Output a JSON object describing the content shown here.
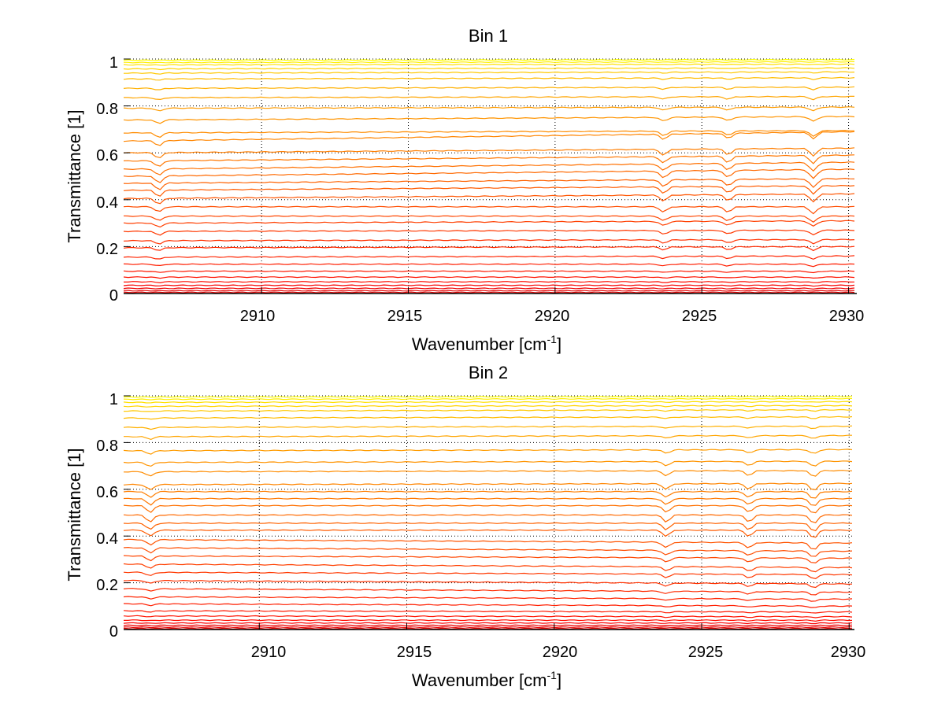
{
  "chart_data": [
    {
      "type": "line",
      "title": "Bin 1",
      "xlabel": "Wavenumber [cm",
      "xlabel_sup": "-1",
      "xlabel_end": "]",
      "ylabel": "Transmittance [1]",
      "xlim": [
        2905.3,
        2930.2
      ],
      "ylim": [
        0,
        1
      ],
      "xticks": [
        2910,
        2915,
        2920,
        2925,
        2930
      ],
      "xtick_labels": [
        "2910",
        "2915",
        "2920",
        "2925",
        "2930"
      ],
      "yticks": [
        0,
        0.2,
        0.4,
        0.6,
        0.8,
        1
      ],
      "ytick_labels": [
        "0",
        "0.2",
        "0.4",
        "0.6",
        "0.8",
        "1"
      ],
      "grid": "dotted",
      "absorption_lines_cm1": [
        2906.5,
        2923.7,
        2925.9,
        2928.8
      ],
      "series": [
        {
          "color": "#ffff00",
          "values": [
            0.995,
            0.997
          ]
        },
        {
          "color": "#ffef00",
          "values": [
            0.985,
            0.988
          ]
        },
        {
          "color": "#ffe000",
          "values": [
            0.975,
            0.978
          ]
        },
        {
          "color": "#ffd400",
          "values": [
            0.958,
            0.962
          ]
        },
        {
          "color": "#ffc800",
          "values": [
            0.94,
            0.945
          ]
        },
        {
          "color": "#ffbc00",
          "values": [
            0.915,
            0.92
          ]
        },
        {
          "color": "#ffb000",
          "values": [
            0.875,
            0.88
          ]
        },
        {
          "color": "#ffa500",
          "values": [
            0.835,
            0.84
          ]
        },
        {
          "color": "#ff9c00",
          "values": [
            0.79,
            0.795
          ]
        },
        {
          "color": "#ff9400",
          "values": [
            0.74,
            0.755
          ]
        },
        {
          "color": "#ff8c00",
          "values": [
            0.685,
            0.695
          ]
        },
        {
          "color": "#ff8500",
          "values": [
            0.65,
            0.69
          ]
        },
        {
          "color": "#ff7e00",
          "values": [
            0.6,
            0.62
          ]
        },
        {
          "color": "#ff7700",
          "values": [
            0.565,
            0.59
          ]
        },
        {
          "color": "#ff7000",
          "values": [
            0.53,
            0.56
          ]
        },
        {
          "color": "#ff6900",
          "values": [
            0.5,
            0.53
          ]
        },
        {
          "color": "#ff6200",
          "values": [
            0.47,
            0.49
          ]
        },
        {
          "color": "#ff5b00",
          "values": [
            0.44,
            0.46
          ]
        },
        {
          "color": "#ff5400",
          "values": [
            0.405,
            0.425
          ]
        },
        {
          "color": "#ff4d00",
          "values": [
            0.37,
            0.37
          ]
        },
        {
          "color": "#ff4600",
          "values": [
            0.33,
            0.33
          ]
        },
        {
          "color": "#ff3f00",
          "values": [
            0.3,
            0.31
          ]
        },
        {
          "color": "#ff3800",
          "values": [
            0.265,
            0.27
          ]
        },
        {
          "color": "#ff3100",
          "values": [
            0.225,
            0.23
          ]
        },
        {
          "color": "#ff2a00",
          "values": [
            0.195,
            0.2
          ]
        },
        {
          "color": "#ff2400",
          "values": [
            0.155,
            0.16
          ]
        },
        {
          "color": "#ff1e00",
          "values": [
            0.125,
            0.125
          ]
        },
        {
          "color": "#ff1800",
          "values": [
            0.095,
            0.095
          ]
        },
        {
          "color": "#ff1200",
          "values": [
            0.07,
            0.07
          ]
        },
        {
          "color": "#ff0c00",
          "values": [
            0.05,
            0.05
          ]
        },
        {
          "color": "#f70000",
          "values": [
            0.035,
            0.035
          ]
        },
        {
          "color": "#ee0000",
          "values": [
            0.022,
            0.022
          ]
        },
        {
          "color": "#e60000",
          "values": [
            0.012,
            0.012
          ]
        },
        {
          "color": "#dd0000",
          "values": [
            0.005,
            0.005
          ]
        }
      ]
    },
    {
      "type": "line",
      "title": "Bin 2",
      "xlabel": "Wavenumber [cm",
      "xlabel_sup": "-1",
      "xlabel_end": "]",
      "ylabel": "Transmittance [1]",
      "xlim": [
        2905.4,
        2930.1
      ],
      "ylim": [
        0,
        1
      ],
      "xticks": [
        2910,
        2915,
        2920,
        2925,
        2930
      ],
      "xtick_labels": [
        "2910",
        "2915",
        "2920",
        "2925",
        "2930"
      ],
      "yticks": [
        0,
        0.2,
        0.4,
        0.6,
        0.8,
        1
      ],
      "ytick_labels": [
        "0",
        "0.2",
        "0.4",
        "0.6",
        "0.8",
        "1"
      ],
      "grid": "dotted",
      "absorption_lines_cm1": [
        2906.3,
        2923.8,
        2926.6,
        2928.8
      ],
      "series": [
        {
          "color": "#ffff00",
          "values": [
            0.995,
            0.997
          ]
        },
        {
          "color": "#ffef00",
          "values": [
            0.985,
            0.988
          ]
        },
        {
          "color": "#ffe000",
          "values": [
            0.972,
            0.975
          ]
        },
        {
          "color": "#ffd400",
          "values": [
            0.955,
            0.958
          ]
        },
        {
          "color": "#ffc800",
          "values": [
            0.935,
            0.94
          ]
        },
        {
          "color": "#ffbc00",
          "values": [
            0.905,
            0.91
          ]
        },
        {
          "color": "#ffb000",
          "values": [
            0.865,
            0.87
          ]
        },
        {
          "color": "#ffa500",
          "values": [
            0.825,
            0.83
          ]
        },
        {
          "color": "#ff9c00",
          "values": [
            0.765,
            0.77
          ]
        },
        {
          "color": "#ff9400",
          "values": [
            0.715,
            0.72
          ]
        },
        {
          "color": "#ff8c00",
          "values": [
            0.675,
            0.68
          ]
        },
        {
          "color": "#ff8500",
          "values": [
            0.62,
            0.625
          ]
        },
        {
          "color": "#ff7e00",
          "values": [
            0.59,
            0.59
          ]
        },
        {
          "color": "#ff7700",
          "values": [
            0.56,
            0.56
          ]
        },
        {
          "color": "#ff7000",
          "values": [
            0.53,
            0.53
          ]
        },
        {
          "color": "#ff6900",
          "values": [
            0.49,
            0.49
          ]
        },
        {
          "color": "#ff6200",
          "values": [
            0.455,
            0.455
          ]
        },
        {
          "color": "#ff5b00",
          "values": [
            0.425,
            0.425
          ]
        },
        {
          "color": "#ff5400",
          "values": [
            0.385,
            0.37
          ]
        },
        {
          "color": "#ff4d00",
          "values": [
            0.35,
            0.335
          ]
        },
        {
          "color": "#ff4600",
          "values": [
            0.315,
            0.305
          ]
        },
        {
          "color": "#ff3f00",
          "values": [
            0.28,
            0.265
          ]
        },
        {
          "color": "#ff3800",
          "values": [
            0.245,
            0.235
          ]
        },
        {
          "color": "#ff3100",
          "values": [
            0.21,
            0.195
          ]
        },
        {
          "color": "#ff2a00",
          "values": [
            0.175,
            0.16
          ]
        },
        {
          "color": "#ff2400",
          "values": [
            0.14,
            0.13
          ]
        },
        {
          "color": "#ff1e00",
          "values": [
            0.11,
            0.1
          ]
        },
        {
          "color": "#ff1800",
          "values": [
            0.08,
            0.075
          ]
        },
        {
          "color": "#ff1200",
          "values": [
            0.058,
            0.055
          ]
        },
        {
          "color": "#ff0c00",
          "values": [
            0.04,
            0.04
          ]
        },
        {
          "color": "#f70000",
          "values": [
            0.028,
            0.028
          ]
        },
        {
          "color": "#ee0000",
          "values": [
            0.018,
            0.018
          ]
        },
        {
          "color": "#e60000",
          "values": [
            0.01,
            0.01
          ]
        },
        {
          "color": "#dd0000",
          "values": [
            0.004,
            0.004
          ]
        }
      ]
    }
  ]
}
